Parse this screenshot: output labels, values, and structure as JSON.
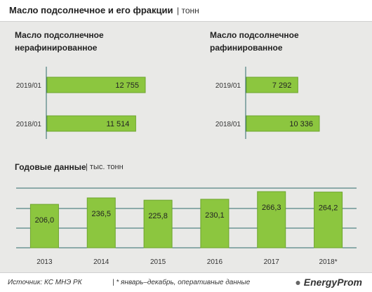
{
  "header": {
    "title": "Масло подсолнечное и его фракции",
    "unit": "| тонн"
  },
  "panels": {
    "unrefined_title": [
      "Масло  подсолнечное",
      "нерафинированное"
    ],
    "refined_title": [
      "Масло  подсолнечное",
      "рафинированное"
    ]
  },
  "annual": {
    "title": "Годовые данные",
    "unit": "| тыс. тонн"
  },
  "footer": {
    "source": "Источник: КС МНЭ РК",
    "note": "| * январь–декабрь, оперативные данные",
    "brand": "EnergyProm"
  },
  "colors": {
    "bar_fill": "#8cc63f",
    "bar_stroke": "#6da52e",
    "grid": "#2f6b6b"
  },
  "chart_data": [
    {
      "type": "bar",
      "orientation": "horizontal",
      "categories": [
        "2019/01",
        "2018/01"
      ],
      "value_labels": [
        "12 755",
        "11 514"
      ],
      "values": [
        12755,
        11514
      ]
    },
    {
      "type": "bar",
      "orientation": "horizontal",
      "categories": [
        "2019/01",
        "2018/01"
      ],
      "value_labels": [
        "7 292",
        "10 336"
      ],
      "values": [
        7292,
        10336
      ]
    },
    {
      "type": "bar",
      "categories": [
        "2013",
        "2014",
        "2015",
        "2016",
        "2017",
        "2018*"
      ],
      "value_labels": [
        "206,0",
        "236,5",
        "225,8",
        "230,1",
        "266,3",
        "264,2"
      ],
      "values": [
        206.0,
        236.5,
        225.8,
        230.1,
        266.3,
        264.2
      ],
      "grid": true
    }
  ]
}
